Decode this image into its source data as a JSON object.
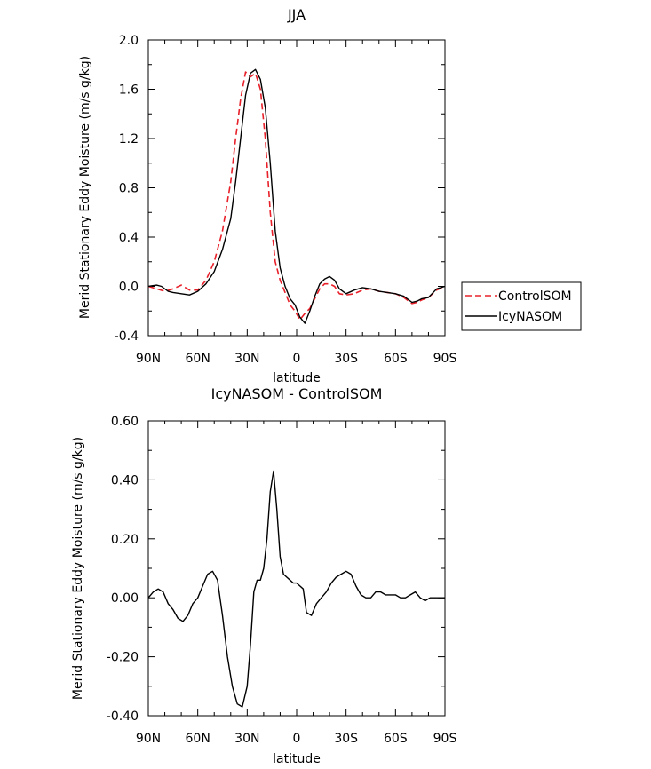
{
  "chart_data": [
    {
      "type": "line",
      "title": "JJA",
      "xlabel": "latitude",
      "ylabel": "Merid Stationary Eddy Moisture (m/s g/kg)",
      "xlim": [
        90,
        -90
      ],
      "ylim": [
        -0.4,
        2.0
      ],
      "xticks": [
        90,
        60,
        30,
        0,
        -30,
        -60,
        -90
      ],
      "xtick_labels": [
        "90N",
        "60N",
        "30N",
        "0",
        "30S",
        "60S",
        "90S"
      ],
      "yticks": [
        -0.4,
        0.0,
        0.4,
        0.8,
        1.2,
        1.6,
        2.0
      ],
      "ytick_labels": [
        "-0.4",
        "0.0",
        "0.4",
        "0.8",
        "1.2",
        "1.6",
        "2.0"
      ],
      "grid": false,
      "legend": "outside-right",
      "series": [
        {
          "name": "ControlSOM",
          "color": "#e8202a",
          "dash": "dashed",
          "x": [
            90,
            85,
            80,
            75,
            70,
            65,
            60,
            55,
            50,
            45,
            40,
            37,
            34,
            31,
            28,
            25,
            22,
            19,
            16,
            13,
            10,
            7,
            4,
            1,
            -2,
            -5,
            -8,
            -11,
            -14,
            -17,
            -20,
            -23,
            -26,
            -30,
            -35,
            -40,
            -45,
            -50,
            -55,
            -60,
            -65,
            -70,
            -73,
            -76,
            -80,
            -85,
            -90
          ],
          "y": [
            0.0,
            -0.02,
            -0.04,
            -0.02,
            0.01,
            -0.03,
            -0.03,
            0.05,
            0.2,
            0.45,
            0.85,
            1.2,
            1.52,
            1.74,
            1.7,
            1.73,
            1.6,
            1.2,
            0.6,
            0.2,
            0.05,
            -0.05,
            -0.15,
            -0.2,
            -0.27,
            -0.22,
            -0.18,
            -0.1,
            -0.02,
            0.02,
            0.02,
            0.0,
            -0.06,
            -0.07,
            -0.06,
            -0.03,
            -0.02,
            -0.04,
            -0.05,
            -0.06,
            -0.09,
            -0.14,
            -0.13,
            -0.11,
            -0.09,
            -0.03,
            0.0
          ]
        },
        {
          "name": "IcyNASOM",
          "color": "#000000",
          "dash": "solid",
          "x": [
            90,
            85,
            82,
            78,
            75,
            70,
            65,
            60,
            55,
            50,
            45,
            40,
            37,
            34,
            31,
            28,
            25,
            22,
            19,
            16,
            13,
            10,
            7,
            4,
            1,
            -2,
            -5,
            -8,
            -11,
            -14,
            -17,
            -20,
            -23,
            -26,
            -30,
            -35,
            -40,
            -45,
            -50,
            -55,
            -60,
            -65,
            -70,
            -73,
            -76,
            -80,
            -85,
            -90
          ],
          "y": [
            0.0,
            0.01,
            0.0,
            -0.04,
            -0.05,
            -0.06,
            -0.07,
            -0.04,
            0.02,
            0.12,
            0.3,
            0.55,
            0.85,
            1.2,
            1.55,
            1.73,
            1.76,
            1.68,
            1.45,
            1.0,
            0.45,
            0.15,
            0.0,
            -0.1,
            -0.15,
            -0.25,
            -0.3,
            -0.2,
            -0.08,
            0.02,
            0.06,
            0.08,
            0.05,
            -0.02,
            -0.06,
            -0.03,
            -0.01,
            -0.02,
            -0.04,
            -0.05,
            -0.06,
            -0.08,
            -0.13,
            -0.12,
            -0.1,
            -0.09,
            -0.02,
            0.0
          ]
        }
      ]
    },
    {
      "type": "line",
      "title": "IcyNASOM - ControlSOM",
      "xlabel": "latitude",
      "ylabel": "Merid Stationary Eddy Moisture (m/s g/kg)",
      "xlim": [
        90,
        -90
      ],
      "ylim": [
        -0.4,
        0.6
      ],
      "xticks": [
        90,
        60,
        30,
        0,
        -30,
        -60,
        -90
      ],
      "xtick_labels": [
        "90N",
        "60N",
        "30N",
        "0",
        "30S",
        "60S",
        "90S"
      ],
      "yticks": [
        -0.4,
        -0.2,
        0.0,
        0.2,
        0.4,
        0.6
      ],
      "ytick_labels": [
        "-0.40",
        "-0.20",
        "0.00",
        "0.20",
        "0.40",
        "0.60"
      ],
      "grid": false,
      "series": [
        {
          "color": "#000000",
          "dash": "solid",
          "x": [
            90,
            87,
            84,
            81,
            78,
            75,
            72,
            69,
            66,
            63,
            60,
            57,
            54,
            51,
            48,
            45,
            42,
            39,
            36,
            33,
            30,
            28,
            26,
            24,
            22,
            20,
            18,
            16,
            14,
            12,
            10,
            8,
            6,
            4,
            2,
            0,
            -2,
            -4,
            -6,
            -9,
            -12,
            -15,
            -18,
            -21,
            -24,
            -27,
            -30,
            -33,
            -36,
            -39,
            -42,
            -45,
            -48,
            -51,
            -54,
            -57,
            -60,
            -63,
            -66,
            -69,
            -72,
            -75,
            -78,
            -81,
            -84,
            -87,
            -90
          ],
          "y": [
            0.0,
            0.02,
            0.03,
            0.02,
            -0.02,
            -0.04,
            -0.07,
            -0.08,
            -0.06,
            -0.02,
            0.0,
            0.04,
            0.08,
            0.09,
            0.06,
            -0.06,
            -0.2,
            -0.3,
            -0.36,
            -0.37,
            -0.3,
            -0.16,
            0.02,
            0.06,
            0.06,
            0.1,
            0.2,
            0.36,
            0.43,
            0.3,
            0.14,
            0.08,
            0.07,
            0.06,
            0.05,
            0.05,
            0.04,
            0.03,
            -0.05,
            -0.06,
            -0.02,
            0.0,
            0.02,
            0.05,
            0.07,
            0.08,
            0.09,
            0.08,
            0.04,
            0.01,
            0.0,
            0.0,
            0.02,
            0.02,
            0.01,
            0.01,
            0.01,
            0.0,
            0.0,
            0.01,
            0.02,
            0.0,
            -0.01,
            0.0,
            0.0,
            0.0,
            0.0
          ]
        }
      ]
    }
  ]
}
